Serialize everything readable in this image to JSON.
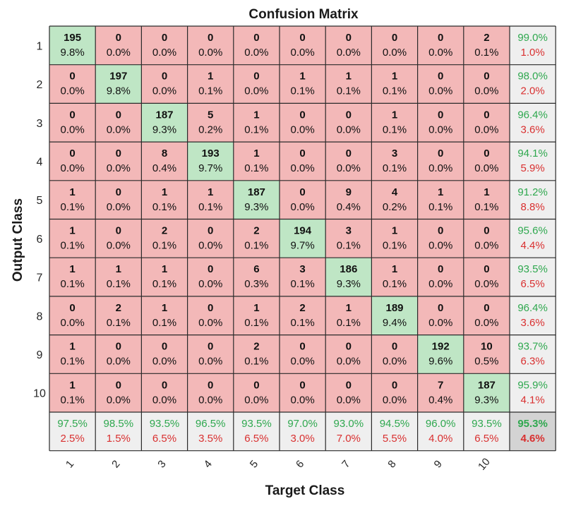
{
  "colors": {
    "diagonal_fill": "#bfe6c5",
    "offdiag_fill": "#f3b8b8",
    "summary_fill": "#efefef",
    "total_fill": "#d3d3d3",
    "grid": "#2a2a2a",
    "correct_text": "#2fa84f",
    "error_text": "#d93030"
  },
  "chart_data": {
    "type": "heatmap",
    "title": "Confusion Matrix",
    "xlabel": "Target Class",
    "ylabel": "Output Class",
    "row_labels": [
      "1",
      "2",
      "3",
      "4",
      "5",
      "6",
      "7",
      "8",
      "9",
      "10"
    ],
    "col_labels": [
      "1",
      "2",
      "3",
      "4",
      "5",
      "6",
      "7",
      "8",
      "9",
      "10"
    ],
    "counts": [
      [
        195,
        0,
        0,
        0,
        0,
        0,
        0,
        0,
        0,
        2
      ],
      [
        0,
        197,
        0,
        1,
        0,
        1,
        1,
        1,
        0,
        0
      ],
      [
        0,
        0,
        187,
        5,
        1,
        0,
        0,
        1,
        0,
        0
      ],
      [
        0,
        0,
        8,
        193,
        1,
        0,
        0,
        3,
        0,
        0
      ],
      [
        1,
        0,
        1,
        1,
        187,
        0,
        9,
        4,
        1,
        1
      ],
      [
        1,
        0,
        2,
        0,
        2,
        194,
        3,
        1,
        0,
        0
      ],
      [
        1,
        1,
        1,
        0,
        6,
        3,
        186,
        1,
        0,
        0
      ],
      [
        0,
        2,
        1,
        0,
        1,
        2,
        1,
        189,
        0,
        0
      ],
      [
        1,
        0,
        0,
        0,
        2,
        0,
        0,
        0,
        192,
        10
      ],
      [
        1,
        0,
        0,
        0,
        0,
        0,
        0,
        0,
        7,
        187
      ]
    ],
    "percents": [
      [
        "9.8%",
        "0.0%",
        "0.0%",
        "0.0%",
        "0.0%",
        "0.0%",
        "0.0%",
        "0.0%",
        "0.0%",
        "0.1%"
      ],
      [
        "0.0%",
        "9.8%",
        "0.0%",
        "0.1%",
        "0.0%",
        "0.1%",
        "0.1%",
        "0.1%",
        "0.0%",
        "0.0%"
      ],
      [
        "0.0%",
        "0.0%",
        "9.3%",
        "0.2%",
        "0.1%",
        "0.0%",
        "0.0%",
        "0.1%",
        "0.0%",
        "0.0%"
      ],
      [
        "0.0%",
        "0.0%",
        "0.4%",
        "9.7%",
        "0.1%",
        "0.0%",
        "0.0%",
        "0.1%",
        "0.0%",
        "0.0%"
      ],
      [
        "0.1%",
        "0.0%",
        "0.1%",
        "0.1%",
        "9.3%",
        "0.0%",
        "0.4%",
        "0.2%",
        "0.1%",
        "0.1%"
      ],
      [
        "0.1%",
        "0.0%",
        "0.1%",
        "0.0%",
        "0.1%",
        "9.7%",
        "0.1%",
        "0.1%",
        "0.0%",
        "0.0%"
      ],
      [
        "0.1%",
        "0.1%",
        "0.1%",
        "0.0%",
        "0.3%",
        "0.1%",
        "9.3%",
        "0.1%",
        "0.0%",
        "0.0%"
      ],
      [
        "0.0%",
        "0.1%",
        "0.1%",
        "0.0%",
        "0.1%",
        "0.1%",
        "0.1%",
        "9.4%",
        "0.0%",
        "0.0%"
      ],
      [
        "0.1%",
        "0.0%",
        "0.0%",
        "0.0%",
        "0.1%",
        "0.0%",
        "0.0%",
        "0.0%",
        "9.6%",
        "0.5%"
      ],
      [
        "0.1%",
        "0.0%",
        "0.0%",
        "0.0%",
        "0.0%",
        "0.0%",
        "0.0%",
        "0.0%",
        "0.4%",
        "9.3%"
      ]
    ],
    "row_summary": [
      {
        "correct": "99.0%",
        "error": "1.0%"
      },
      {
        "correct": "98.0%",
        "error": "2.0%"
      },
      {
        "correct": "96.4%",
        "error": "3.6%"
      },
      {
        "correct": "94.1%",
        "error": "5.9%"
      },
      {
        "correct": "91.2%",
        "error": "8.8%"
      },
      {
        "correct": "95.6%",
        "error": "4.4%"
      },
      {
        "correct": "93.5%",
        "error": "6.5%"
      },
      {
        "correct": "96.4%",
        "error": "3.6%"
      },
      {
        "correct": "93.7%",
        "error": "6.3%"
      },
      {
        "correct": "95.9%",
        "error": "4.1%"
      }
    ],
    "col_summary": [
      {
        "correct": "97.5%",
        "error": "2.5%"
      },
      {
        "correct": "98.5%",
        "error": "1.5%"
      },
      {
        "correct": "93.5%",
        "error": "6.5%"
      },
      {
        "correct": "96.5%",
        "error": "3.5%"
      },
      {
        "correct": "93.5%",
        "error": "6.5%"
      },
      {
        "correct": "97.0%",
        "error": "3.0%"
      },
      {
        "correct": "93.0%",
        "error": "7.0%"
      },
      {
        "correct": "94.5%",
        "error": "5.5%"
      },
      {
        "correct": "96.0%",
        "error": "4.0%"
      },
      {
        "correct": "93.5%",
        "error": "6.5%"
      }
    ],
    "overall": {
      "correct": "95.3%",
      "error": "4.6%"
    }
  }
}
